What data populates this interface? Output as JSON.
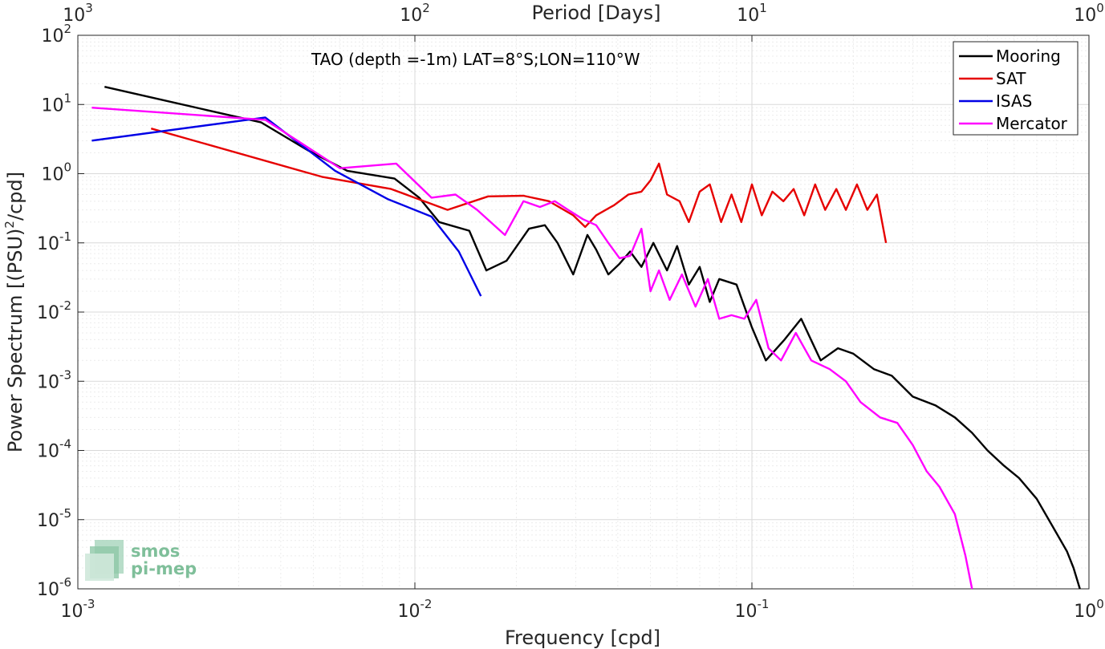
{
  "chart_data": {
    "type": "line",
    "x_scale": "log",
    "y_scale": "log",
    "xlabel": "Frequency [cpd]",
    "ylabel": "Power Spectrum [(PSU)^2/cpd]",
    "ylabel_parts": {
      "before": "Power Spectrum [(PSU)",
      "exp": "2",
      "after": "/cpd]"
    },
    "top_xlabel": "Period [Days]",
    "annotation": "TAO (depth =-1m) LAT=8°S;LON=110°W",
    "xlim": [
      0.001,
      1
    ],
    "ylim": [
      1e-06,
      100
    ],
    "grid": true,
    "legend_position": "top-right",
    "x_ticks": [
      {
        "value": 0.001,
        "base": "10",
        "exp": "-3"
      },
      {
        "value": 0.01,
        "base": "10",
        "exp": "-2"
      },
      {
        "value": 0.1,
        "base": "10",
        "exp": "-1"
      },
      {
        "value": 1,
        "base": "10",
        "exp": "0"
      }
    ],
    "top_ticks": [
      {
        "value": 0.001,
        "base": "10",
        "exp": "3"
      },
      {
        "value": 0.01,
        "base": "10",
        "exp": "2"
      },
      {
        "value": 0.1,
        "base": "10",
        "exp": "1"
      },
      {
        "value": 1,
        "base": "10",
        "exp": "0"
      }
    ],
    "y_ticks": [
      {
        "value": 100,
        "base": "10",
        "exp": "2"
      },
      {
        "value": 10,
        "base": "10",
        "exp": "1"
      },
      {
        "value": 1,
        "base": "10",
        "exp": "0"
      },
      {
        "value": 0.1,
        "base": "10",
        "exp": "-1"
      },
      {
        "value": 0.01,
        "base": "10",
        "exp": "-2"
      },
      {
        "value": 0.001,
        "base": "10",
        "exp": "-3"
      },
      {
        "value": 0.0001,
        "base": "10",
        "exp": "-4"
      },
      {
        "value": 1e-05,
        "base": "10",
        "exp": "-5"
      },
      {
        "value": 1e-06,
        "base": "10",
        "exp": "-6"
      }
    ],
    "series": [
      {
        "name": "Mooring",
        "color": "#000000",
        "x": [
          0.0012,
          0.0035,
          0.0048,
          0.0063,
          0.0087,
          0.0103,
          0.0118,
          0.0145,
          0.0163,
          0.0187,
          0.0218,
          0.0243,
          0.0265,
          0.0295,
          0.0325,
          0.0345,
          0.0375,
          0.0405,
          0.0435,
          0.047,
          0.051,
          0.056,
          0.06,
          0.065,
          0.07,
          0.075,
          0.08,
          0.09,
          0.1,
          0.11,
          0.125,
          0.14,
          0.16,
          0.18,
          0.2,
          0.23,
          0.26,
          0.3,
          0.35,
          0.4,
          0.45,
          0.5,
          0.56,
          0.62,
          0.7,
          0.78,
          0.86,
          0.9,
          0.94
        ],
        "y": [
          18,
          5.5,
          2.2,
          1.1,
          0.85,
          0.45,
          0.2,
          0.15,
          0.04,
          0.055,
          0.16,
          0.18,
          0.1,
          0.035,
          0.13,
          0.08,
          0.035,
          0.05,
          0.075,
          0.045,
          0.1,
          0.04,
          0.09,
          0.025,
          0.045,
          0.014,
          0.03,
          0.025,
          0.006,
          0.002,
          0.004,
          0.008,
          0.002,
          0.003,
          0.0025,
          0.0015,
          0.0012,
          0.0006,
          0.00045,
          0.0003,
          0.00018,
          0.0001,
          6e-05,
          4e-05,
          2e-05,
          8e-06,
          3.5e-06,
          2e-06,
          1e-06
        ]
      },
      {
        "name": "SAT",
        "color": "#e60000",
        "x": [
          0.00165,
          0.0053,
          0.0085,
          0.0125,
          0.0165,
          0.021,
          0.025,
          0.0295,
          0.032,
          0.0345,
          0.039,
          0.043,
          0.047,
          0.05,
          0.053,
          0.056,
          0.061,
          0.065,
          0.07,
          0.075,
          0.081,
          0.087,
          0.093,
          0.1,
          0.107,
          0.115,
          0.124,
          0.133,
          0.143,
          0.154,
          0.165,
          0.178,
          0.19,
          0.205,
          0.22,
          0.235,
          0.25
        ],
        "y": [
          4.5,
          0.9,
          0.6,
          0.3,
          0.47,
          0.48,
          0.4,
          0.25,
          0.17,
          0.25,
          0.35,
          0.5,
          0.55,
          0.8,
          1.4,
          0.5,
          0.4,
          0.2,
          0.55,
          0.7,
          0.2,
          0.5,
          0.2,
          0.7,
          0.25,
          0.55,
          0.4,
          0.6,
          0.25,
          0.7,
          0.3,
          0.6,
          0.3,
          0.7,
          0.3,
          0.5,
          0.1
        ]
      },
      {
        "name": "ISAS",
        "color": "#0000e6",
        "x": [
          0.0011,
          0.0036,
          0.0058,
          0.0083,
          0.0112,
          0.0135,
          0.0157
        ],
        "y": [
          3,
          6.5,
          1.1,
          0.43,
          0.24,
          0.075,
          0.017
        ]
      },
      {
        "name": "Mercator",
        "color": "#ff00ff",
        "x": [
          0.0011,
          0.0036,
          0.006,
          0.0088,
          0.0112,
          0.0132,
          0.0153,
          0.0185,
          0.021,
          0.0235,
          0.026,
          0.0285,
          0.0315,
          0.0345,
          0.0375,
          0.0405,
          0.0435,
          0.047,
          0.05,
          0.053,
          0.057,
          0.062,
          0.068,
          0.074,
          0.08,
          0.087,
          0.095,
          0.103,
          0.112,
          0.122,
          0.135,
          0.15,
          0.17,
          0.19,
          0.21,
          0.24,
          0.27,
          0.3,
          0.33,
          0.36,
          0.4,
          0.43,
          0.45
        ],
        "y": [
          9,
          6,
          1.2,
          1.4,
          0.45,
          0.5,
          0.3,
          0.13,
          0.4,
          0.33,
          0.4,
          0.3,
          0.22,
          0.18,
          0.1,
          0.06,
          0.065,
          0.16,
          0.02,
          0.04,
          0.015,
          0.035,
          0.012,
          0.03,
          0.008,
          0.009,
          0.008,
          0.015,
          0.003,
          0.002,
          0.005,
          0.002,
          0.0015,
          0.001,
          0.0005,
          0.0003,
          0.00025,
          0.00012,
          5e-05,
          3e-05,
          1.2e-05,
          3e-06,
          1e-06
        ]
      }
    ]
  },
  "logo": {
    "line1": "smos",
    "line2": "pi-mep"
  }
}
